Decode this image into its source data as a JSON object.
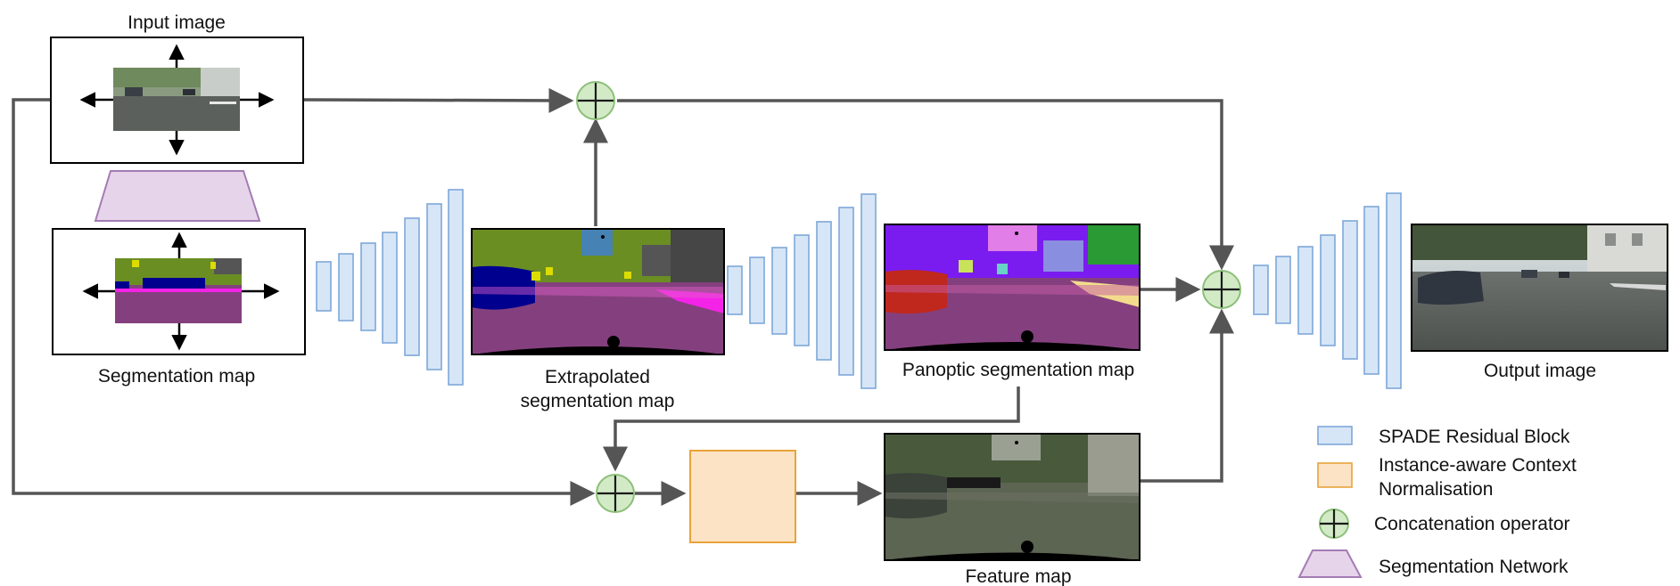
{
  "labels": {
    "input_image": "Input image",
    "segmentation_map": "Segmentation map",
    "extrapolated_line1": "Extrapolated",
    "extrapolated_line2": "segmentation map",
    "panoptic": "Panoptic segmentation map",
    "output_image": "Output image",
    "feature_map": "Feature map"
  },
  "legend": {
    "spade": "SPADE Residual Block",
    "icn_line1": "Instance-aware Context",
    "icn_line2": "Normalisation",
    "concat": "Concatenation operator",
    "segnet": "Segmentation Network"
  },
  "colors": {
    "spade_fill": "#d6e6f7",
    "icn_fill": "#fde3c6",
    "concat_fill": "#d2ebc6",
    "segnet_fill": "#e6d5ea",
    "road": "#84407e",
    "vegetation": "#6b8e23",
    "sky": "#4682b4",
    "car": "#00008e",
    "panoptic_violet": "#7a1cf0",
    "panoptic_red": "#c0281e",
    "feature_gray": "#5c6452"
  }
}
